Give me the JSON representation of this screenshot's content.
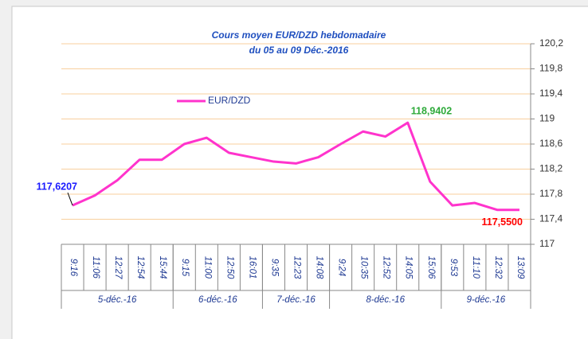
{
  "chart_data": {
    "type": "line",
    "title": "Cours moyen  EUR/DZD  hebdomadaire",
    "subtitle": "du 05 au 09 Déc.-2016",
    "groups": [
      {
        "name": "5-déc.-16",
        "categories": [
          "9:16",
          "11:06",
          "12:27",
          "12:54",
          "15:44"
        ]
      },
      {
        "name": "6-déc.-16",
        "categories": [
          "9:15",
          "11:00",
          "12:50",
          "16:01"
        ]
      },
      {
        "name": "7-déc.-16",
        "categories": [
          "9:35",
          "12:23",
          "14:08"
        ]
      },
      {
        "name": "8-déc.-16",
        "categories": [
          "9:24",
          "10:35",
          "12:52",
          "14:05",
          "15:06"
        ]
      },
      {
        "name": "9-déc.-16",
        "categories": [
          "9:53",
          "11:10",
          "12:32",
          "13:09"
        ]
      }
    ],
    "series": [
      {
        "name": "EUR/DZD",
        "color": "#ff33cc",
        "values": [
          117.6207,
          117.78,
          118.02,
          118.35,
          118.35,
          118.6,
          118.7,
          118.46,
          118.39,
          118.32,
          118.29,
          118.39,
          118.6,
          118.8,
          118.72,
          118.9402,
          118.0,
          117.62,
          117.66,
          117.55,
          117.55
        ],
        "value_labels": [
          "117,6207",
          null,
          null,
          null,
          null,
          null,
          null,
          null,
          null,
          null,
          null,
          null,
          null,
          null,
          null,
          "118,9402",
          null,
          null,
          null,
          null,
          "117,5500"
        ],
        "value_label_colors": [
          "#1a1aff",
          null,
          null,
          null,
          null,
          null,
          null,
          null,
          null,
          null,
          null,
          null,
          null,
          null,
          null,
          "#2eaa3a",
          null,
          null,
          null,
          null,
          "#ff0000"
        ]
      }
    ],
    "ylim": [
      117,
      120.2
    ],
    "yticks": [
      117,
      {
        "value": 117.4,
        "label": "117,4"
      },
      {
        "value": 117.8,
        "label": "117,8"
      },
      {
        "value": 118.2,
        "label": "118,2"
      },
      {
        "value": 118.6,
        "label": "118,6"
      },
      119,
      {
        "value": 119.4,
        "label": "119,4"
      },
      {
        "value": 119.8,
        "label": "119,8"
      },
      {
        "value": 120.2,
        "label": "120,2"
      }
    ],
    "yaxis_side": "right",
    "grid": true,
    "grid_color": "#f8cf9e",
    "legend": "upper left"
  }
}
